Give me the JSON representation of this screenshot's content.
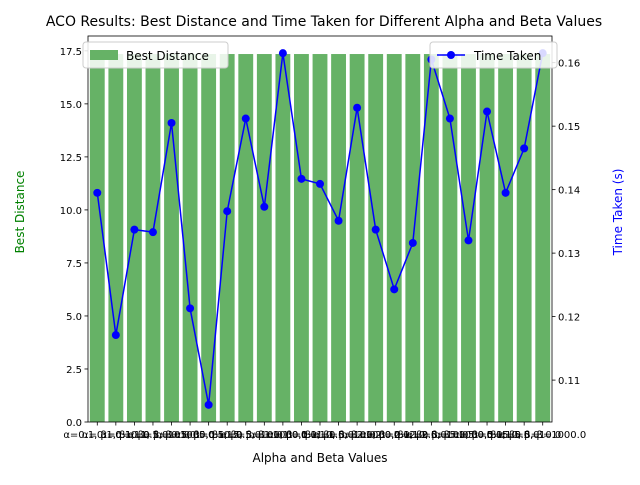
{
  "chart_data": {
    "type": "bar",
    "title": "ACO Results: Best Distance and Time Taken for Different Alpha and Beta Values",
    "xlabel": "Alpha and Beta Values",
    "ylabel_left": "Best Distance",
    "ylabel_right": "Time Taken (s)",
    "categories": [
      "α=0.1, β=0.1",
      "α=0.1, β=1.0",
      "α=0.1, β=5.0",
      "α=0.1, β=10.0",
      "α=0.1, β=1000.0",
      "α=0.5, β=0.1",
      "α=0.5, β=1.0",
      "α=0.5, β=5.0",
      "α=0.5, β=10.0",
      "α=0.5, β=1000.0",
      "α=1.0, β=0.1",
      "α=1.0, β=1.0",
      "α=1.0, β=5.0",
      "α=1.0, β=10.0",
      "α=1.0, β=1000.0",
      "α=2.0, β=0.1",
      "α=2.0, β=1.0",
      "α=2.0, β=5.0",
      "α=2.0, β=10.0",
      "α=2.0, β=1000.0",
      "α=5.0, β=0.1",
      "α=5.0, β=1.0",
      "α=5.0, β=5.0",
      "α=5.0, β=10.0",
      "α=5.0, β=1000.0"
    ],
    "series": [
      {
        "name": "Best Distance",
        "type": "bar",
        "axis": "left",
        "color": "#66b266",
        "values": [
          17.35,
          17.35,
          17.35,
          17.35,
          17.35,
          17.35,
          17.35,
          17.35,
          17.35,
          17.35,
          17.35,
          17.35,
          17.35,
          17.35,
          17.35,
          17.35,
          17.35,
          17.35,
          17.35,
          17.35,
          17.35,
          17.35,
          17.35,
          17.35,
          17.35
        ]
      },
      {
        "name": "Time Taken",
        "type": "line",
        "axis": "right",
        "color": "#0000ff",
        "values": [
          0.1395,
          0.1171,
          0.1337,
          0.1333,
          0.1505,
          0.1213,
          0.1061,
          0.1366,
          0.1512,
          0.1373,
          0.1615,
          0.1417,
          0.1409,
          0.1351,
          0.1529,
          0.1337,
          0.1243,
          0.1316,
          0.1605,
          0.1512,
          0.132,
          0.1523,
          0.1395,
          0.1465,
          0.1615
        ]
      }
    ],
    "ylim_left": [
      0,
      18.2
    ],
    "ylim_right": [
      0.1034,
      0.1642
    ],
    "yticks_left": [
      "0.0",
      "2.5",
      "5.0",
      "7.5",
      "10.0",
      "12.5",
      "15.0",
      "17.5"
    ],
    "yticks_right": [
      "0.11",
      "0.12",
      "0.13",
      "0.14",
      "0.15",
      "0.16"
    ],
    "legend_left": {
      "placement": "upper-left",
      "label": "Best Distance"
    },
    "legend_right": {
      "placement": "upper-right",
      "label": "Time Taken"
    },
    "grid": false
  }
}
